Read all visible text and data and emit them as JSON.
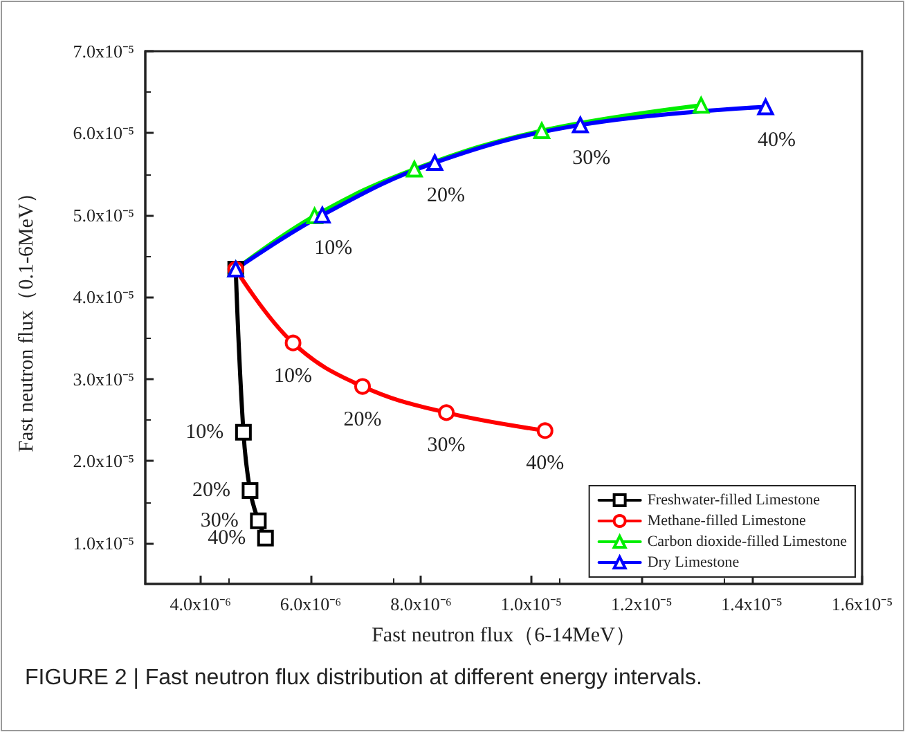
{
  "chart_data": {
    "type": "line",
    "xlabel": "Fast neutron flux（6-14MeV）",
    "ylabel": "Fast neutron flux（0.1-6MeV）",
    "xlim": [
      3e-06,
      1.6e-05
    ],
    "xticks": [
      {
        "value": 4e-06,
        "label": "4.0x10⁻⁶"
      },
      {
        "value": 6e-06,
        "label": "6.0x10⁻⁶"
      },
      {
        "value": 8e-06,
        "label": "8.0x10⁻⁶"
      },
      {
        "value": 1e-05,
        "label": "1.0x10⁻⁵"
      },
      {
        "value": 1.2e-05,
        "label": "1.2x10⁻⁵"
      },
      {
        "value": 1.4e-05,
        "label": "1.4x10⁻⁵"
      },
      {
        "value": 1.6e-05,
        "label": "1.6x10⁻⁵"
      }
    ],
    "ylim": [
      5e-06,
      7e-05
    ],
    "yticks": [
      {
        "value": 1e-05,
        "label": "1.0x10⁻⁵"
      },
      {
        "value": 2e-05,
        "label": "2.0x10⁻⁵"
      },
      {
        "value": 3e-05,
        "label": "3.0x10⁻⁵"
      },
      {
        "value": 4e-05,
        "label": "4.0x10⁻⁵"
      },
      {
        "value": 5e-05,
        "label": "5.0x10⁻⁵"
      },
      {
        "value": 6e-05,
        "label": "6.0x10⁻⁵"
      },
      {
        "value": 7e-05,
        "label": "7.0x10⁻⁵"
      }
    ],
    "grid": false,
    "legend": "bottom right",
    "line_style": "solid",
    "series": [
      {
        "name": "Freshwater-filled Limestone",
        "color": "#000000",
        "marker": "square",
        "x": [
          4.64e-06,
          4.78e-06,
          4.9e-06,
          5.05e-06,
          5.18e-06
        ],
        "values": [
          4.34e-05,
          2.35e-05,
          1.64e-05,
          1.27e-05,
          1.06e-05
        ]
      },
      {
        "name": "Methane-filled Limestone",
        "color": "#ff0000",
        "marker": "circle",
        "x": [
          4.64e-06,
          5.68e-06,
          6.94e-06,
          8.46e-06,
          1.025e-05
        ],
        "values": [
          4.34e-05,
          3.44e-05,
          2.91e-05,
          2.59e-05,
          2.37e-05
        ]
      },
      {
        "name": "Carbon dioxide-filled Limestone",
        "color": "#00ee00",
        "marker": "triangle",
        "x": [
          4.64e-06,
          6.07e-06,
          7.88e-06,
          1.019e-05,
          1.308e-05
        ],
        "values": [
          4.34e-05,
          4.99e-05,
          5.56e-05,
          6.03e-05,
          6.34e-05
        ]
      },
      {
        "name": "Dry Limestone",
        "color": "#0000ff",
        "marker": "triangle",
        "x": [
          4.64e-06,
          6.21e-06,
          8.25e-06,
          1.089e-05,
          1.425e-05
        ],
        "values": [
          4.34e-05,
          5e-05,
          5.64e-05,
          6.1e-05,
          6.32e-05
        ]
      }
    ],
    "annotations": [
      {
        "text": "10%",
        "x": 6.21e-06,
        "y": 5e-05
      },
      {
        "text": "20%",
        "x": 8.25e-06,
        "y": 5.64e-05
      },
      {
        "text": "30%",
        "x": 1.089e-05,
        "y": 6.1e-05
      },
      {
        "text": "40%",
        "x": 1.425e-05,
        "y": 6.32e-05
      },
      {
        "text": "10%",
        "x": 5.68e-06,
        "y": 3.44e-05
      },
      {
        "text": "20%",
        "x": 6.94e-06,
        "y": 2.91e-05
      },
      {
        "text": "30%",
        "x": 8.46e-06,
        "y": 2.59e-05
      },
      {
        "text": "40%",
        "x": 1.025e-05,
        "y": 2.37e-05
      },
      {
        "text": "10%",
        "x": 4.78e-06,
        "y": 2.35e-05
      },
      {
        "text": "20%",
        "x": 4.9e-06,
        "y": 1.64e-05
      },
      {
        "text": "30%",
        "x": 5.05e-06,
        "y": 1.27e-05
      },
      {
        "text": "40%",
        "x": 5.18e-06,
        "y": 1.06e-05
      },
      "FIGURE 2 | Fast neutron flux distribution at different energy intervals."
    ]
  }
}
